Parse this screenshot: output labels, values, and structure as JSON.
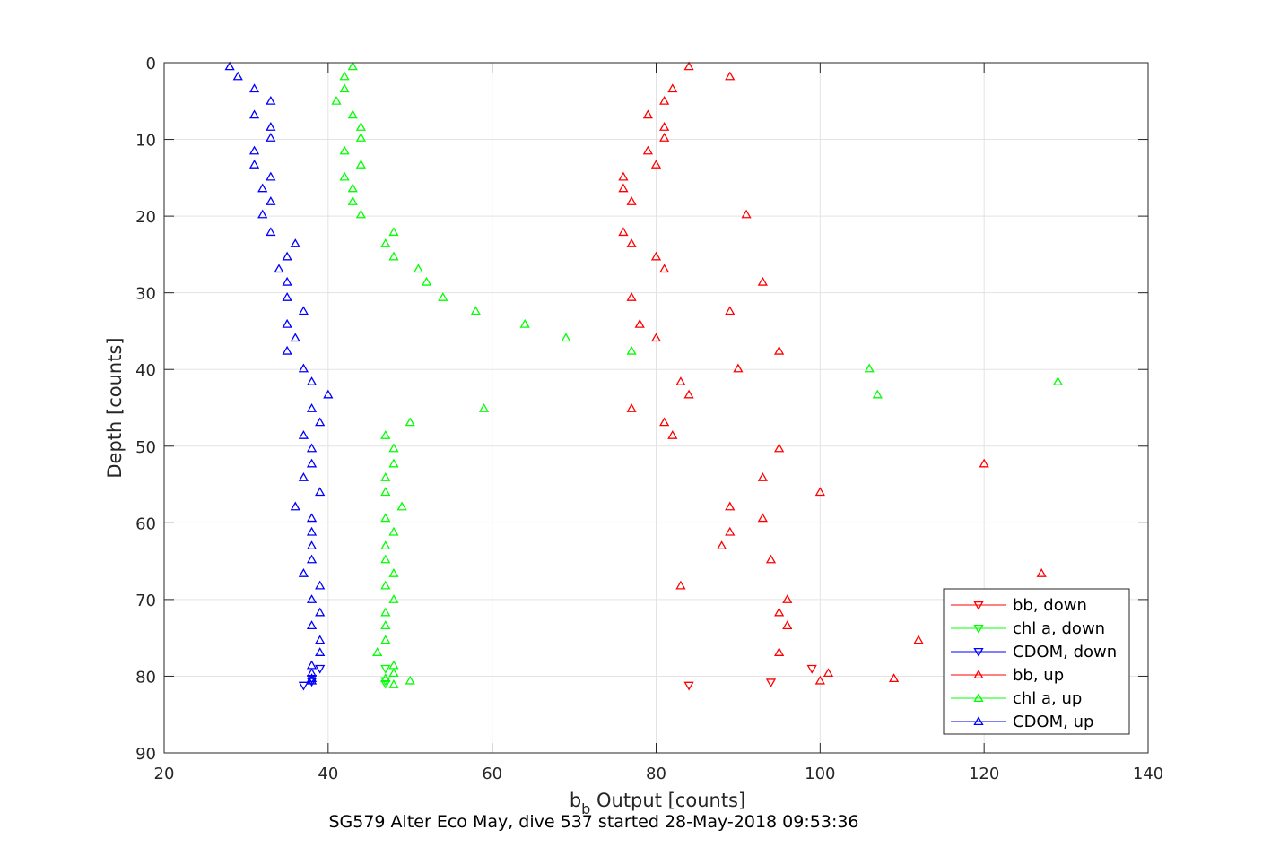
{
  "caption": "SG579 Alter Eco May, dive 537 started 28-May-2018 09:53:36",
  "chart_data": {
    "type": "scatter",
    "xlabel_main": "b",
    "xlabel_sub": "b",
    "xlabel_rest": " Output [counts]",
    "ylabel": "Depth [counts]",
    "xlim": [
      20,
      140
    ],
    "ylim": [
      0,
      90
    ],
    "y_reversed": true,
    "grid": true,
    "legend_position": "bottom-right",
    "x_ticks": [
      20,
      40,
      60,
      80,
      100,
      120,
      140
    ],
    "y_ticks": [
      0,
      10,
      20,
      30,
      40,
      50,
      60,
      70,
      80,
      90
    ],
    "series": [
      {
        "name": "bb, down",
        "color": "#ff0000",
        "marker": "triangle-down",
        "x": [
          99,
          94,
          84
        ],
        "y": [
          79.0,
          80.8,
          81.2
        ]
      },
      {
        "name": "chl a, down",
        "color": "#00ff00",
        "marker": "triangle-down",
        "x": [
          47,
          47,
          47
        ],
        "y": [
          79.0,
          80.6,
          81.0
        ]
      },
      {
        "name": "CDOM, down",
        "color": "#0000ff",
        "marker": "triangle-down",
        "x": [
          39,
          38,
          38,
          37
        ],
        "y": [
          79.0,
          80.3,
          80.7,
          81.2
        ]
      },
      {
        "name": "bb, up",
        "color": "#ff0000",
        "marker": "triangle-up",
        "x": [
          84,
          89,
          82,
          81,
          79,
          81,
          81,
          79,
          80,
          76,
          76,
          77,
          91,
          76,
          77,
          80,
          81,
          93,
          77,
          89,
          78,
          80,
          95,
          90,
          83,
          84,
          77,
          81,
          82,
          95,
          120,
          93,
          100,
          89,
          93,
          89,
          88,
          94,
          127,
          83,
          96,
          95,
          96,
          112,
          95,
          101,
          109,
          100
        ],
        "y": [
          0.5,
          1.8,
          3.4,
          5.0,
          6.8,
          8.4,
          9.8,
          11.5,
          13.3,
          14.9,
          16.4,
          18.1,
          19.8,
          22.1,
          23.6,
          25.3,
          26.9,
          28.6,
          30.6,
          32.4,
          34.1,
          35.9,
          37.6,
          39.9,
          41.6,
          43.3,
          45.1,
          46.9,
          48.6,
          50.3,
          52.3,
          54.1,
          56.0,
          57.9,
          59.4,
          61.2,
          63.0,
          64.8,
          66.6,
          68.2,
          70.0,
          71.7,
          73.4,
          75.3,
          76.9,
          79.6,
          80.3,
          80.6
        ]
      },
      {
        "name": "chl a, up",
        "color": "#00ff00",
        "marker": "triangle-up",
        "x": [
          43,
          42,
          42,
          41,
          43,
          44,
          44,
          42,
          44,
          42,
          43,
          43,
          44,
          48,
          47,
          48,
          51,
          52,
          54,
          58,
          64,
          69,
          77,
          106,
          129,
          107,
          59,
          50,
          47,
          48,
          48,
          47,
          47,
          49,
          47,
          48,
          47,
          47,
          48,
          47,
          48,
          47,
          47,
          47,
          46,
          48,
          48,
          47,
          50,
          48
        ],
        "y": [
          0.5,
          1.8,
          3.4,
          5.0,
          6.8,
          8.4,
          9.8,
          11.5,
          13.3,
          14.9,
          16.4,
          18.1,
          19.8,
          22.1,
          23.6,
          25.3,
          26.9,
          28.6,
          30.6,
          32.4,
          34.1,
          35.9,
          37.6,
          39.9,
          41.6,
          43.3,
          45.1,
          46.9,
          48.6,
          50.3,
          52.3,
          54.1,
          56.0,
          57.9,
          59.4,
          61.2,
          63.0,
          64.8,
          66.6,
          68.2,
          70.0,
          71.7,
          73.4,
          75.3,
          76.9,
          78.6,
          79.6,
          80.3,
          80.6,
          81.1
        ]
      },
      {
        "name": "CDOM, up",
        "color": "#0000ff",
        "marker": "triangle-up",
        "x": [
          28,
          29,
          31,
          33,
          31,
          33,
          33,
          31,
          31,
          33,
          32,
          33,
          32,
          33,
          36,
          35,
          34,
          35,
          35,
          37,
          35,
          36,
          35,
          37,
          38,
          40,
          38,
          39,
          37,
          38,
          38,
          37,
          39,
          36,
          38,
          38,
          38,
          38,
          37,
          39,
          38,
          39,
          38,
          39,
          39,
          38,
          38,
          38,
          38
        ],
        "y": [
          0.5,
          1.8,
          3.4,
          5.0,
          6.8,
          8.4,
          9.8,
          11.5,
          13.3,
          14.9,
          16.4,
          18.1,
          19.8,
          22.1,
          23.6,
          25.3,
          26.9,
          28.6,
          30.6,
          32.4,
          34.1,
          35.9,
          37.6,
          39.9,
          41.6,
          43.3,
          45.1,
          46.9,
          48.6,
          50.3,
          52.3,
          54.1,
          56.0,
          57.9,
          59.4,
          61.2,
          63.0,
          64.8,
          66.6,
          68.2,
          70.0,
          71.7,
          73.4,
          75.3,
          76.9,
          78.6,
          79.6,
          80.3,
          80.6
        ]
      }
    ]
  }
}
